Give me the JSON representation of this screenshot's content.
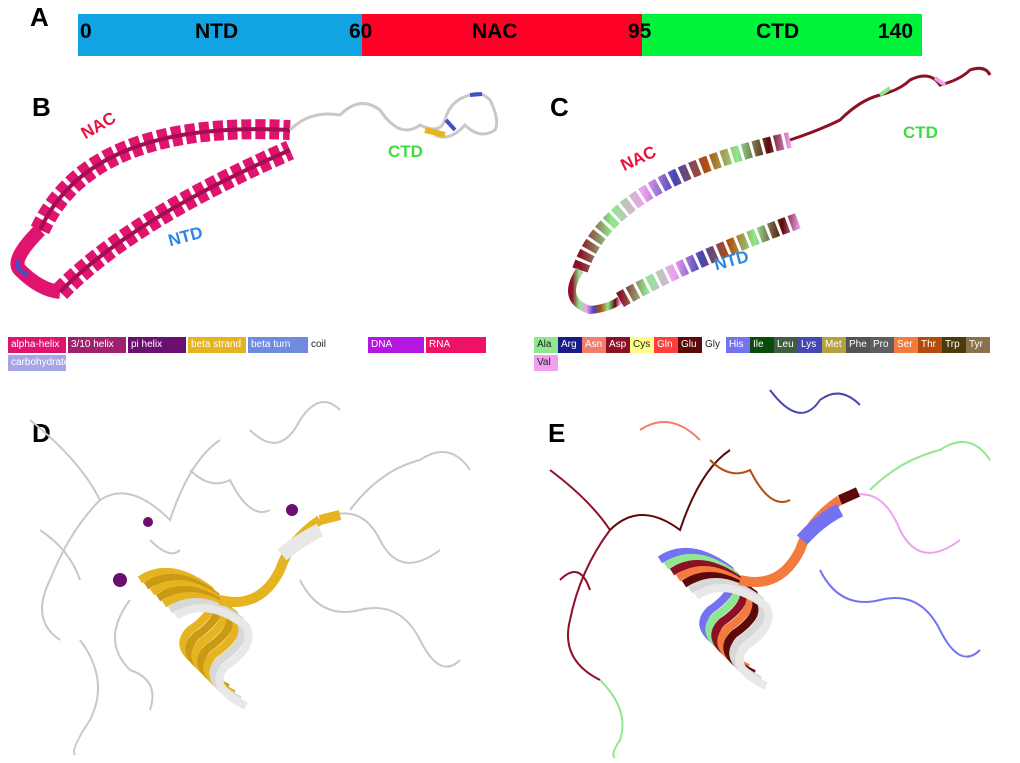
{
  "panels": {
    "a": "A",
    "b": "B",
    "c": "C",
    "d": "D",
    "e": "E"
  },
  "domain_bar": {
    "segments": [
      {
        "name": "NTD",
        "start": "0",
        "end": "60",
        "color": "#12a3e3"
      },
      {
        "name": "NAC",
        "start": "60",
        "end": "95",
        "color": "#ff0026"
      },
      {
        "name": "CTD",
        "start": "95",
        "end": "140",
        "color": "#00f23a"
      }
    ]
  },
  "panel_b_labels": {
    "nac": "NAC",
    "ntd": "NTD",
    "ctd": "CTD"
  },
  "panel_c_labels": {
    "nac": "NAC",
    "ntd": "NTD",
    "ctd": "CTD"
  },
  "colors": {
    "nac_label": "#e8123a",
    "ntd_label": "#2f85e0",
    "ctd_label": "#3fdc3f",
    "helix": "#e0136f",
    "beta_strand": "#d4a017",
    "coil": "#c8c8c8"
  },
  "ss_legend": [
    {
      "label": "alpha-helix",
      "color": "#e0136f"
    },
    {
      "label": "3/10 helix",
      "color": "#a0206d"
    },
    {
      "label": "pi helix",
      "color": "#6a0f6f"
    },
    {
      "label": "beta strand",
      "color": "#e6b321"
    },
    {
      "label": "beta turn",
      "color": "#6f8be0"
    },
    {
      "label": "coil",
      "color": "#ffffff"
    },
    {
      "label": "DNA",
      "color": "#b417e0"
    },
    {
      "label": "RNA",
      "color": "#ee1166"
    },
    {
      "label": "carbohydrate",
      "color": "#a6a6e6"
    }
  ],
  "aa_legend": [
    {
      "label": "Ala",
      "color": "#8fe88f"
    },
    {
      "label": "Arg",
      "color": "#1b1b8c"
    },
    {
      "label": "Asn",
      "color": "#f27d6f"
    },
    {
      "label": "Asp",
      "color": "#8c1026"
    },
    {
      "label": "Cys",
      "color": "#ffff88"
    },
    {
      "label": "Gln",
      "color": "#ff3f3f"
    },
    {
      "label": "Glu",
      "color": "#5e0909"
    },
    {
      "label": "Gly",
      "color": "#ffffff"
    },
    {
      "label": "His",
      "color": "#7373f2"
    },
    {
      "label": "Ile",
      "color": "#0a4a0a"
    },
    {
      "label": "Leu",
      "color": "#3f5e3f"
    },
    {
      "label": "Lys",
      "color": "#4646b5"
    },
    {
      "label": "Met",
      "color": "#b5a040"
    },
    {
      "label": "Phe",
      "color": "#535353"
    },
    {
      "label": "Pro",
      "color": "#5e5e5e"
    },
    {
      "label": "Ser",
      "color": "#f27b3d"
    },
    {
      "label": "Thr",
      "color": "#b34c0b"
    },
    {
      "label": "Trp",
      "color": "#4a3b0b"
    },
    {
      "label": "Tyr",
      "color": "#8c704c"
    },
    {
      "label": "Val",
      "color": "#f0a0f0"
    }
  ]
}
